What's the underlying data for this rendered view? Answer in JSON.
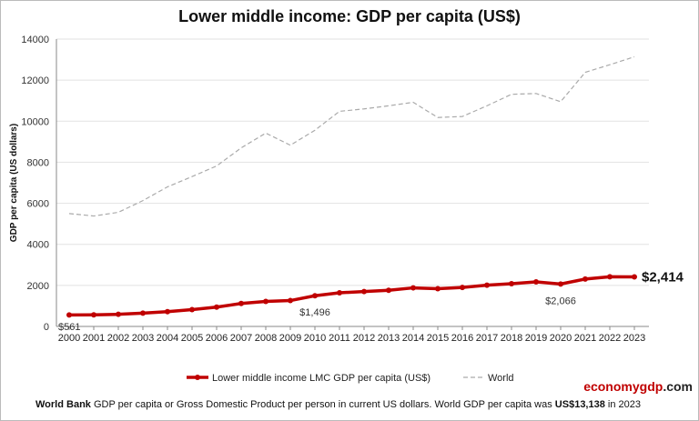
{
  "chart_data": {
    "type": "line",
    "title": "Lower middle income: GDP per capita (US$)",
    "ylabel": "GDP per capita (US dollars)",
    "xlabel": "",
    "ylim": [
      0,
      14000
    ],
    "yticks": [
      0,
      2000,
      4000,
      6000,
      8000,
      10000,
      12000,
      14000
    ],
    "grid": true,
    "legend_position": "bottom",
    "x": [
      "2000",
      "2001",
      "2002",
      "2003",
      "2004",
      "2005",
      "2006",
      "2007",
      "2008",
      "2009",
      "2010",
      "2011",
      "2012",
      "2013",
      "2014",
      "2015",
      "2016",
      "2017",
      "2018",
      "2019",
      "2020",
      "2021",
      "2022",
      "2023"
    ],
    "series": [
      {
        "name": "Lower middle income LMC GDP per capita (US$)",
        "color": "#c00000",
        "style": "solid-markers",
        "values": [
          561,
          565,
          590,
          650,
          720,
          820,
          940,
          1120,
          1220,
          1260,
          1496,
          1640,
          1700,
          1760,
          1880,
          1840,
          1900,
          2010,
          2080,
          2170,
          2066,
          2310,
          2420,
          2414
        ]
      },
      {
        "name": "World",
        "color": "#aaaaaa",
        "style": "dashed",
        "values": [
          5500,
          5380,
          5560,
          6130,
          6800,
          7300,
          7820,
          8700,
          9420,
          8830,
          9560,
          10480,
          10600,
          10750,
          10920,
          10180,
          10230,
          10750,
          11310,
          11350,
          10950,
          12380,
          12750,
          13138
        ]
      }
    ],
    "annotations": [
      {
        "x": "2000",
        "text": "$561"
      },
      {
        "x": "2010",
        "text": "$1,496"
      },
      {
        "x": "2020",
        "text": "$2,066"
      },
      {
        "x": "2023",
        "text": "$2,414",
        "bold": true
      }
    ]
  },
  "brand": {
    "part1": "economygdp",
    "part2": ".com"
  },
  "footer": {
    "b1": "World Bank",
    "t1": " GDP per capita or Gross Domestic Product per person in current US dollars.   World GDP per capita was ",
    "b2": "US$13,138",
    "t2": "  in 2023"
  }
}
